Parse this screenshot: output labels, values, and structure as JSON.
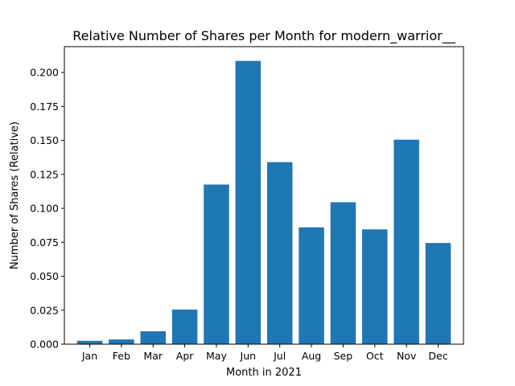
{
  "chart_data": {
    "type": "bar",
    "title": "Relative Number of Shares per Month for modern_warrior__",
    "xlabel": "Month in 2021",
    "ylabel": "Number of Shares (Relative)",
    "categories": [
      "Jan",
      "Feb",
      "Mar",
      "Apr",
      "May",
      "Jun",
      "Jul",
      "Aug",
      "Sep",
      "Oct",
      "Nov",
      "Dec"
    ],
    "values": [
      0.0025,
      0.0035,
      0.0095,
      0.0255,
      0.1175,
      0.2085,
      0.134,
      0.086,
      0.1045,
      0.0845,
      0.1505,
      0.0745
    ],
    "ylim": [
      0,
      0.219
    ],
    "yticks": [
      "0.000",
      "0.025",
      "0.050",
      "0.075",
      "0.100",
      "0.125",
      "0.150",
      "0.175",
      "0.200"
    ],
    "grid": false,
    "bar_color": "#1f77b4"
  }
}
